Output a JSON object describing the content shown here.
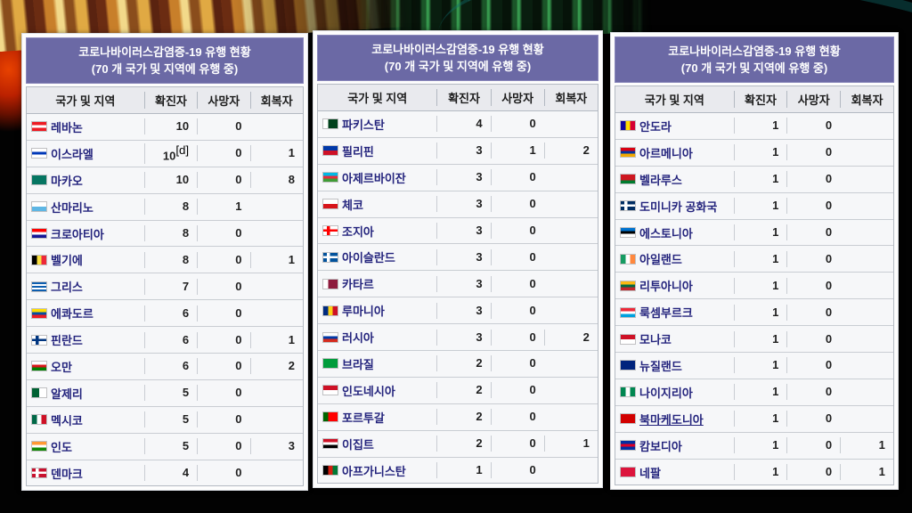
{
  "colors": {
    "title_bg": "#6b69a5",
    "title_text": "#ffffff",
    "header_bg": "#e9eaee",
    "row_bg": "#f6f7f9",
    "link": "#24247d",
    "border": "#b3b9c2"
  },
  "tables": [
    {
      "title_line1": "코로나바이러스감염증-19 유행 현황",
      "title_line2": "(70 개 국가 및 지역에 유행 중)",
      "columns": [
        "국가 및 지역",
        "확진자",
        "사망자",
        "회복자"
      ],
      "rows": [
        {
          "country": "레바논",
          "flag": {
            "type": "h",
            "colors": [
              "#ed1c24",
              "#ffffff",
              "#ed1c24"
            ]
          },
          "confirmed": "10",
          "deaths": "0",
          "recovered": ""
        },
        {
          "country": "이스라엘",
          "flag": {
            "type": "h",
            "colors": [
              "#ffffff",
              "#0038b8",
              "#ffffff"
            ]
          },
          "confirmed": "10",
          "note": "[d]",
          "deaths": "0",
          "recovered": "1"
        },
        {
          "country": "마카오",
          "flag": {
            "type": "h",
            "colors": [
              "#067662"
            ]
          },
          "confirmed": "10",
          "deaths": "0",
          "recovered": "8"
        },
        {
          "country": "산마리노",
          "flag": {
            "type": "h",
            "colors": [
              "#ffffff",
              "#5eb6e4"
            ]
          },
          "confirmed": "8",
          "deaths": "1",
          "recovered": ""
        },
        {
          "country": "크로아티아",
          "flag": {
            "type": "h",
            "colors": [
              "#ff0000",
              "#ffffff",
              "#171796"
            ]
          },
          "confirmed": "8",
          "deaths": "0",
          "recovered": ""
        },
        {
          "country": "벨기에",
          "flag": {
            "type": "v",
            "colors": [
              "#000000",
              "#fae042",
              "#ed2939"
            ]
          },
          "confirmed": "8",
          "deaths": "0",
          "recovered": "1"
        },
        {
          "country": "그리스",
          "flag": {
            "type": "h",
            "colors": [
              "#0d5eaf",
              "#ffffff",
              "#0d5eaf",
              "#ffffff",
              "#0d5eaf"
            ]
          },
          "confirmed": "7",
          "deaths": "0",
          "recovered": ""
        },
        {
          "country": "에콰도르",
          "flag": {
            "type": "h",
            "colors": [
              "#ffdd00",
              "#034ea2",
              "#ed1c24"
            ]
          },
          "confirmed": "6",
          "deaths": "0",
          "recovered": ""
        },
        {
          "country": "핀란드",
          "flag": {
            "type": "cross",
            "bg": "#ffffff",
            "cross": "#003580"
          },
          "confirmed": "6",
          "deaths": "0",
          "recovered": "1"
        },
        {
          "country": "오만",
          "flag": {
            "type": "h",
            "colors": [
              "#ffffff",
              "#db161b",
              "#008000"
            ]
          },
          "confirmed": "6",
          "deaths": "0",
          "recovered": "2"
        },
        {
          "country": "알제리",
          "flag": {
            "type": "v",
            "colors": [
              "#006233",
              "#ffffff"
            ]
          },
          "confirmed": "5",
          "deaths": "0",
          "recovered": ""
        },
        {
          "country": "멕시코",
          "flag": {
            "type": "v",
            "colors": [
              "#006847",
              "#ffffff",
              "#ce1126"
            ]
          },
          "confirmed": "5",
          "deaths": "0",
          "recovered": ""
        },
        {
          "country": "인도",
          "flag": {
            "type": "h",
            "colors": [
              "#ff9933",
              "#ffffff",
              "#128807"
            ]
          },
          "confirmed": "5",
          "deaths": "0",
          "recovered": "3"
        },
        {
          "country": "덴마크",
          "flag": {
            "type": "cross",
            "bg": "#c8102e",
            "cross": "#ffffff"
          },
          "confirmed": "4",
          "deaths": "0",
          "recovered": ""
        }
      ]
    },
    {
      "title_line1": "코로나바이러스감염증-19 유행 현황",
      "title_line2": "(70 개 국가 및 지역에 유행 중)",
      "columns": [
        "국가 및 지역",
        "확진자",
        "사망자",
        "회복자"
      ],
      "rows": [
        {
          "country": "파키스탄",
          "flag": {
            "type": "v",
            "colors": [
              "#ffffff",
              "#01411c",
              "#01411c"
            ]
          },
          "confirmed": "4",
          "deaths": "0",
          "recovered": ""
        },
        {
          "country": "필리핀",
          "flag": {
            "type": "h",
            "colors": [
              "#0038a8",
              "#ce1126"
            ]
          },
          "confirmed": "3",
          "deaths": "1",
          "recovered": "2"
        },
        {
          "country": "아제르바이잔",
          "flag": {
            "type": "h",
            "colors": [
              "#00b9e4",
              "#ed2939",
              "#3f9c35"
            ]
          },
          "confirmed": "3",
          "deaths": "0",
          "recovered": ""
        },
        {
          "country": "체코",
          "flag": {
            "type": "h",
            "colors": [
              "#ffffff",
              "#d7141a"
            ]
          },
          "confirmed": "3",
          "deaths": "0",
          "recovered": ""
        },
        {
          "country": "조지아",
          "flag": {
            "type": "cross",
            "bg": "#ffffff",
            "cross": "#ff0000"
          },
          "confirmed": "3",
          "deaths": "0",
          "recovered": ""
        },
        {
          "country": "아이슬란드",
          "flag": {
            "type": "cross",
            "bg": "#02529c",
            "cross": "#ffffff"
          },
          "confirmed": "3",
          "deaths": "0",
          "recovered": ""
        },
        {
          "country": "카타르",
          "flag": {
            "type": "v",
            "colors": [
              "#ffffff",
              "#8d1b3d",
              "#8d1b3d"
            ]
          },
          "confirmed": "3",
          "deaths": "0",
          "recovered": ""
        },
        {
          "country": "루마니아",
          "flag": {
            "type": "v",
            "colors": [
              "#002b7f",
              "#fcd116",
              "#ce1126"
            ]
          },
          "confirmed": "3",
          "deaths": "0",
          "recovered": ""
        },
        {
          "country": "러시아",
          "flag": {
            "type": "h",
            "colors": [
              "#ffffff",
              "#0039a6",
              "#d52b1e"
            ]
          },
          "confirmed": "3",
          "deaths": "0",
          "recovered": "2"
        },
        {
          "country": "브라질",
          "flag": {
            "type": "h",
            "colors": [
              "#009c3b"
            ]
          },
          "confirmed": "2",
          "deaths": "0",
          "recovered": ""
        },
        {
          "country": "인도네시아",
          "flag": {
            "type": "h",
            "colors": [
              "#ce1126",
              "#ffffff"
            ]
          },
          "confirmed": "2",
          "deaths": "0",
          "recovered": ""
        },
        {
          "country": "포르투갈",
          "flag": {
            "type": "v",
            "colors": [
              "#006600",
              "#ff0000",
              "#ff0000"
            ]
          },
          "confirmed": "2",
          "deaths": "0",
          "recovered": ""
        },
        {
          "country": "이집트",
          "flag": {
            "type": "h",
            "colors": [
              "#ce1126",
              "#ffffff",
              "#000000"
            ]
          },
          "confirmed": "2",
          "deaths": "0",
          "recovered": "1"
        },
        {
          "country": "아프가니스탄",
          "flag": {
            "type": "v",
            "colors": [
              "#000000",
              "#d32011",
              "#007a36"
            ]
          },
          "confirmed": "1",
          "deaths": "0",
          "recovered": ""
        }
      ]
    },
    {
      "title_line1": "코로나바이러스감염증-19 유행 현황",
      "title_line2": "(70 개 국가 및 지역에 유행 중)",
      "columns": [
        "국가 및 지역",
        "확진자",
        "사망자",
        "회복자"
      ],
      "rows": [
        {
          "country": "안도라",
          "flag": {
            "type": "v",
            "colors": [
              "#10069f",
              "#fedd00",
              "#d50032"
            ]
          },
          "confirmed": "1",
          "deaths": "0",
          "recovered": ""
        },
        {
          "country": "아르메니아",
          "flag": {
            "type": "h",
            "colors": [
              "#d90012",
              "#0033a0",
              "#f2a800"
            ]
          },
          "confirmed": "1",
          "deaths": "0",
          "recovered": ""
        },
        {
          "country": "벨라루스",
          "flag": {
            "type": "h",
            "colors": [
              "#ce1720",
              "#ce1720",
              "#007c30"
            ]
          },
          "confirmed": "1",
          "deaths": "0",
          "recovered": ""
        },
        {
          "country": "도미니카 공화국",
          "flag": {
            "type": "cross",
            "bg": "#002d62",
            "cross": "#ffffff"
          },
          "confirmed": "1",
          "deaths": "0",
          "recovered": ""
        },
        {
          "country": "에스토니아",
          "flag": {
            "type": "h",
            "colors": [
              "#0072ce",
              "#000000",
              "#ffffff"
            ]
          },
          "confirmed": "1",
          "deaths": "0",
          "recovered": ""
        },
        {
          "country": "아일랜드",
          "flag": {
            "type": "v",
            "colors": [
              "#169b62",
              "#ffffff",
              "#ff883e"
            ]
          },
          "confirmed": "1",
          "deaths": "0",
          "recovered": ""
        },
        {
          "country": "리투아니아",
          "flag": {
            "type": "h",
            "colors": [
              "#fdb913",
              "#006a44",
              "#c1272d"
            ]
          },
          "confirmed": "1",
          "deaths": "0",
          "recovered": ""
        },
        {
          "country": "룩셈부르크",
          "flag": {
            "type": "h",
            "colors": [
              "#ed2939",
              "#ffffff",
              "#00a1de"
            ]
          },
          "confirmed": "1",
          "deaths": "0",
          "recovered": ""
        },
        {
          "country": "모나코",
          "flag": {
            "type": "h",
            "colors": [
              "#ce1126",
              "#ffffff"
            ]
          },
          "confirmed": "1",
          "deaths": "0",
          "recovered": ""
        },
        {
          "country": "뉴질랜드",
          "flag": {
            "type": "h",
            "colors": [
              "#00247d"
            ]
          },
          "confirmed": "1",
          "deaths": "0",
          "recovered": ""
        },
        {
          "country": "나이지리아",
          "flag": {
            "type": "v",
            "colors": [
              "#008751",
              "#ffffff",
              "#008751"
            ]
          },
          "confirmed": "1",
          "deaths": "0",
          "recovered": ""
        },
        {
          "country": "북마케도니아",
          "underline": true,
          "flag": {
            "type": "h",
            "colors": [
              "#d20000"
            ]
          },
          "confirmed": "1",
          "deaths": "0",
          "recovered": ""
        },
        {
          "country": "캄보디아",
          "flag": {
            "type": "h",
            "colors": [
              "#032ea1",
              "#e00025",
              "#032ea1"
            ]
          },
          "confirmed": "1",
          "deaths": "0",
          "recovered": "1"
        },
        {
          "country": "네팔",
          "flag": {
            "type": "h",
            "colors": [
              "#dc143c"
            ]
          },
          "confirmed": "1",
          "deaths": "0",
          "recovered": "1"
        }
      ]
    }
  ]
}
